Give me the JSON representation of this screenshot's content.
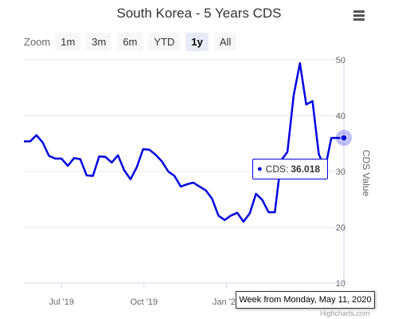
{
  "header": {
    "title": "South Korea - 5 Years CDS",
    "menu_icon": "hamburger-menu-icon"
  },
  "zoom": {
    "label": "Zoom",
    "buttons": [
      {
        "label": "1m",
        "active": false
      },
      {
        "label": "3m",
        "active": false
      },
      {
        "label": "6m",
        "active": false
      },
      {
        "label": "YTD",
        "active": false
      },
      {
        "label": "1y",
        "active": true
      },
      {
        "label": "All",
        "active": false
      }
    ]
  },
  "tooltip": {
    "series_name": "CDS",
    "value_text": "36.018",
    "x_label": "Week from Monday, May 11, 2020"
  },
  "credits": "Highcharts.com",
  "colors": {
    "line": "#0000e0",
    "grid": "#e6e6e6",
    "crosshair": "#ccd6eb",
    "text": "#333333",
    "axis_text": "#666666"
  },
  "chart_data": {
    "type": "line",
    "title": "South Korea - 5 Years CDS",
    "ylabel": "CDS Value",
    "ylim": [
      10,
      50
    ],
    "ytick_labels": [
      "10",
      "20",
      "30",
      "40",
      "50"
    ],
    "ytick_values": [
      10,
      20,
      30,
      40,
      50
    ],
    "xtick_labels": [
      "Jul '19",
      "Oct '19",
      "Jan '20"
    ],
    "xtick_dates": [
      "2019-07-01",
      "2019-10-01",
      "2020-01-01"
    ],
    "grid": true,
    "legend": "none",
    "series": [
      {
        "x": [
          "2019-05-20",
          "2019-05-27",
          "2019-06-03",
          "2019-06-10",
          "2019-06-17",
          "2019-06-24",
          "2019-07-01",
          "2019-07-08",
          "2019-07-15",
          "2019-07-22",
          "2019-07-29",
          "2019-08-05",
          "2019-08-12",
          "2019-08-19",
          "2019-08-26",
          "2019-09-02",
          "2019-09-09",
          "2019-09-16",
          "2019-09-23",
          "2019-09-30",
          "2019-10-07",
          "2019-10-14",
          "2019-10-21",
          "2019-10-28",
          "2019-11-04",
          "2019-11-11",
          "2019-11-18",
          "2019-11-25",
          "2019-12-02",
          "2019-12-09",
          "2019-12-16",
          "2019-12-23",
          "2019-12-30",
          "2020-01-06",
          "2020-01-13",
          "2020-01-20",
          "2020-01-27",
          "2020-02-03",
          "2020-02-10",
          "2020-02-17",
          "2020-02-24",
          "2020-03-02",
          "2020-03-09",
          "2020-03-16",
          "2020-03-23",
          "2020-03-30",
          "2020-04-06",
          "2020-04-13",
          "2020-04-20",
          "2020-04-27",
          "2020-05-04",
          "2020-05-11"
        ],
        "values": [
          35.4,
          35.4,
          36.5,
          35.2,
          32.8,
          32.3,
          32.3,
          31.0,
          32.4,
          32.2,
          29.3,
          29.2,
          32.7,
          32.6,
          31.6,
          32.9,
          30.2,
          28.6,
          30.8,
          34.0,
          33.9,
          33.0,
          31.8,
          30.0,
          29.2,
          27.3,
          27.7,
          28.0,
          27.3,
          26.6,
          25.1,
          22.1,
          21.3,
          22.1,
          22.6,
          21.0,
          22.5,
          26.0,
          24.9,
          22.7,
          22.7,
          32.0,
          33.5,
          43.6,
          49.4,
          42.0,
          42.6,
          33.1,
          30.5,
          36.0,
          36.0,
          36.018
        ]
      }
    ]
  }
}
